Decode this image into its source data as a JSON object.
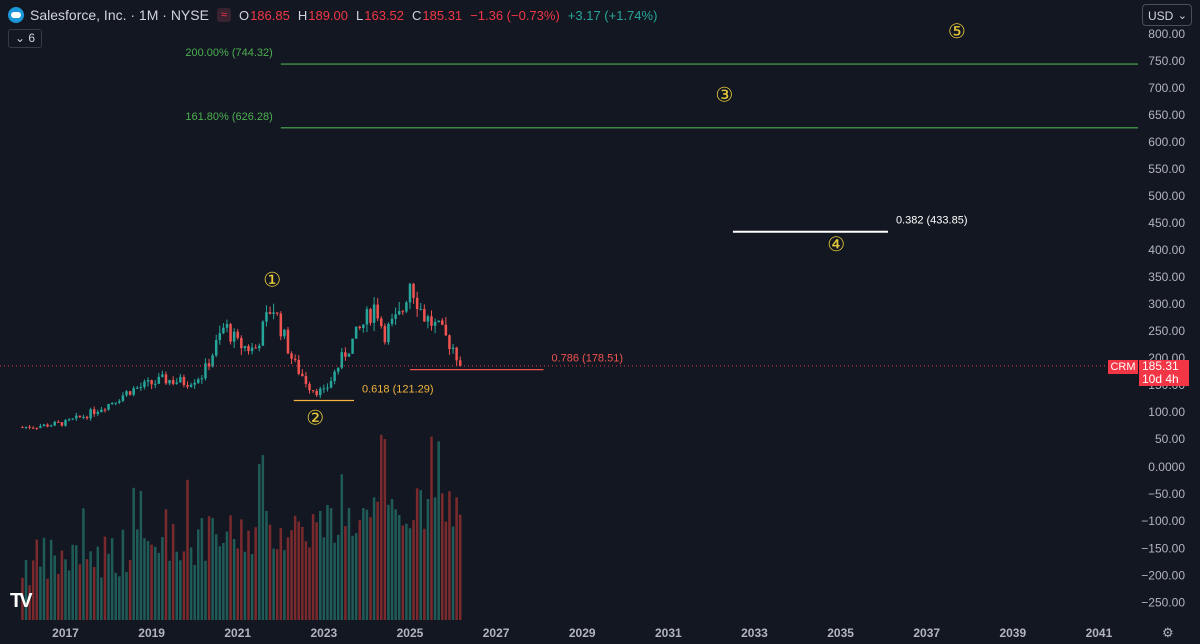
{
  "header": {
    "symbol_line": "Salesforce, Inc. · 1M · NYSE",
    "ohlc": [
      {
        "label": "O",
        "value": "186.85"
      },
      {
        "label": "H",
        "value": "189.00"
      },
      {
        "label": "L",
        "value": "163.52"
      },
      {
        "label": "C",
        "value": "185.31"
      }
    ],
    "change": "−1.36 (−0.73%)",
    "change2": "+3.17 (+1.74%)",
    "wave_badge": "≈",
    "indicator_count": "6",
    "currency": "USD",
    "currency_chevron": "⌄",
    "tv_logo": "TV",
    "settings_icon": "⚙"
  },
  "price_tag": {
    "symbol": "CRM",
    "price": "185.31",
    "countdown": "10d 4h"
  },
  "colors": {
    "bg": "#131722",
    "up": "#26a69a",
    "down": "#ef5350",
    "fib_green": "#4caf50",
    "fib_orange": "#f0b43c",
    "wave_label": "#e7c93a"
  },
  "chart_data": {
    "type": "candlestick",
    "interval": "1M",
    "last_close": 185.31,
    "price_axis": {
      "ticks": [
        "800.00",
        "750.00",
        "700.00",
        "650.00",
        "600.00",
        "550.00",
        "500.00",
        "450.00",
        "400.00",
        "350.00",
        "300.00",
        "250.00",
        "200.00",
        "150.00",
        "100.00",
        "50.00"
      ],
      "range": [
        0,
        830
      ]
    },
    "volume_axis": {
      "ticks": [
        "0.0000",
        "−50.00",
        "−100.00",
        "−150.00",
        "−200.00",
        "−250.00"
      ]
    },
    "x_axis": {
      "ticks": [
        "2017",
        "2019",
        "2021",
        "2023",
        "2025",
        "2027",
        "2029",
        "2031",
        "2033",
        "2035",
        "2037",
        "2039",
        "2041"
      ]
    },
    "price_path": [
      {
        "year": 2016.0,
        "price": 72
      },
      {
        "year": 2016.5,
        "price": 75
      },
      {
        "year": 2017.0,
        "price": 80
      },
      {
        "year": 2017.5,
        "price": 95
      },
      {
        "year": 2018.0,
        "price": 115
      },
      {
        "year": 2018.5,
        "price": 140
      },
      {
        "year": 2018.9,
        "price": 150
      },
      {
        "year": 2019.3,
        "price": 160
      },
      {
        "year": 2019.8,
        "price": 155
      },
      {
        "year": 2020.2,
        "price": 170
      },
      {
        "year": 2020.7,
        "price": 260
      },
      {
        "year": 2021.0,
        "price": 225
      },
      {
        "year": 2021.4,
        "price": 215
      },
      {
        "year": 2021.8,
        "price": 300
      },
      {
        "year": 2022.3,
        "price": 190
      },
      {
        "year": 2022.7,
        "price": 145
      },
      {
        "year": 2023.0,
        "price": 135
      },
      {
        "year": 2023.5,
        "price": 210
      },
      {
        "year": 2023.9,
        "price": 260
      },
      {
        "year": 2024.2,
        "price": 300
      },
      {
        "year": 2024.4,
        "price": 245
      },
      {
        "year": 2024.8,
        "price": 280
      },
      {
        "year": 2025.0,
        "price": 345
      },
      {
        "year": 2025.3,
        "price": 280
      },
      {
        "year": 2025.7,
        "price": 250
      },
      {
        "year": 2026.0,
        "price": 220
      },
      {
        "year": 2026.2,
        "price": 185
      }
    ],
    "fib_levels": [
      {
        "label": "200.00% (744.32)",
        "value": 744.32,
        "color": "#4caf50",
        "from_year": 2022.0,
        "to_year": 2042.0
      },
      {
        "label": "161.80% (626.28)",
        "value": 626.28,
        "color": "#4caf50",
        "from_year": 2022.0,
        "to_year": 2042.0
      },
      {
        "label": "0.382 (433.85)",
        "value": 433.85,
        "color": "#ffffff",
        "from_year": 2032.5,
        "to_year": 2036.1
      },
      {
        "label": "0.786 (178.51)",
        "value": 178.51,
        "color": "#ef5350",
        "from_year": 2025.0,
        "to_year": 2028.1
      },
      {
        "label": "0.618 (121.29)",
        "value": 121.29,
        "color": "#f0b43c",
        "from_year": 2022.3,
        "to_year": 2023.7
      }
    ],
    "wave_labels": [
      {
        "label": "①",
        "year": 2021.8,
        "price": 345
      },
      {
        "label": "②",
        "year": 2022.8,
        "price": 90
      },
      {
        "label": "③",
        "year": 2032.3,
        "price": 688
      },
      {
        "label": "④",
        "year": 2034.9,
        "price": 411
      },
      {
        "label": "⑤",
        "year": 2037.7,
        "price": 806
      }
    ]
  }
}
